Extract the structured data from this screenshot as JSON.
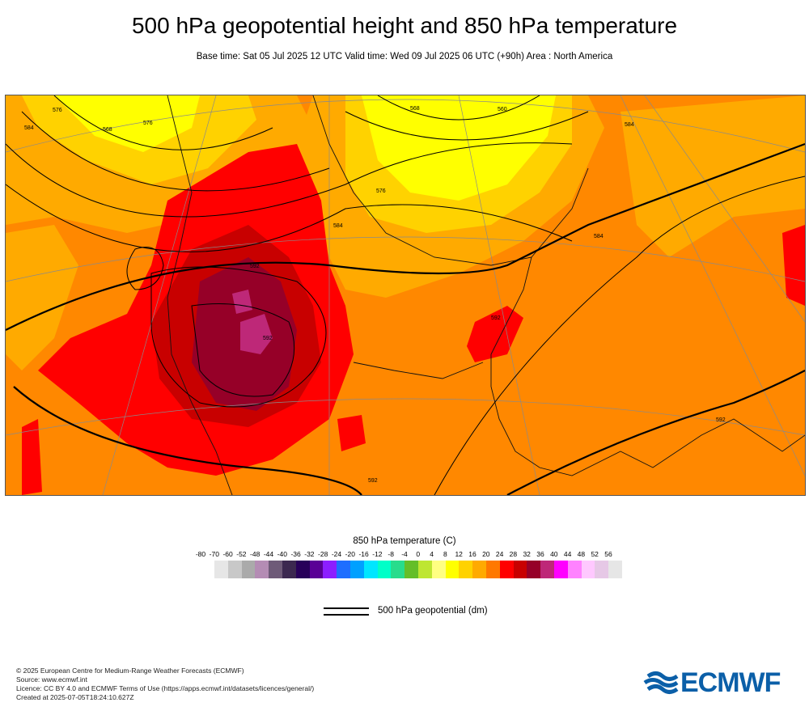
{
  "title": "500 hPa geopotential height and 850 hPa temperature",
  "subtitle": "Base time: Sat 05 Jul 2025 12 UTC Valid time: Wed 09 Jul 2025 06 UTC (+90h) Area : North America",
  "map": {
    "area": "North America",
    "contour_labels": [
      "568",
      "560",
      "584",
      "576",
      "584",
      "592",
      "576",
      "568",
      "584",
      "584",
      "592",
      "592",
      "592",
      "592",
      "576"
    ]
  },
  "legend": {
    "title": "850 hPa temperature (C)",
    "ticks": [
      "-80",
      "-70",
      "-60",
      "-52",
      "-48",
      "-44",
      "-40",
      "-36",
      "-32",
      "-28",
      "-24",
      "-20",
      "-16",
      "-12",
      "-8",
      "-4",
      "0",
      "4",
      "8",
      "12",
      "16",
      "20",
      "24",
      "28",
      "32",
      "36",
      "40",
      "44",
      "48",
      "52",
      "56"
    ],
    "colors": [
      "#e6e6e6",
      "#c8c8c8",
      "#aaaaaa",
      "#b48cb4",
      "#6e5a78",
      "#3c2850",
      "#28005a",
      "#5a0096",
      "#8c1eff",
      "#1e6eff",
      "#00a0ff",
      "#00e6ff",
      "#00ffc8",
      "#28dc8c",
      "#64be28",
      "#bee632",
      "#ffff82",
      "#ffff00",
      "#ffd200",
      "#ffaa00",
      "#ff7800",
      "#ff0000",
      "#c80000",
      "#960028",
      "#be2878",
      "#ff00ff",
      "#ff82ff",
      "#ffc8ff",
      "#e6c8e6",
      "#e6e6e6"
    ],
    "contour_label": "500 hPa geopotential (dm)"
  },
  "credits": [
    "© 2025 European Centre for Medium-Range Weather Forecasts (ECMWF)",
    "Source: www.ecmwf.int",
    "Licence: CC BY 4.0 and ECMWF Terms of Use (https://apps.ecmwf.int/datasets/licences/general/)",
    "Created at 2025-07-05T18:24:10.627Z"
  ],
  "logo": {
    "text": "ECMWF",
    "color": "#0b5fa8"
  }
}
